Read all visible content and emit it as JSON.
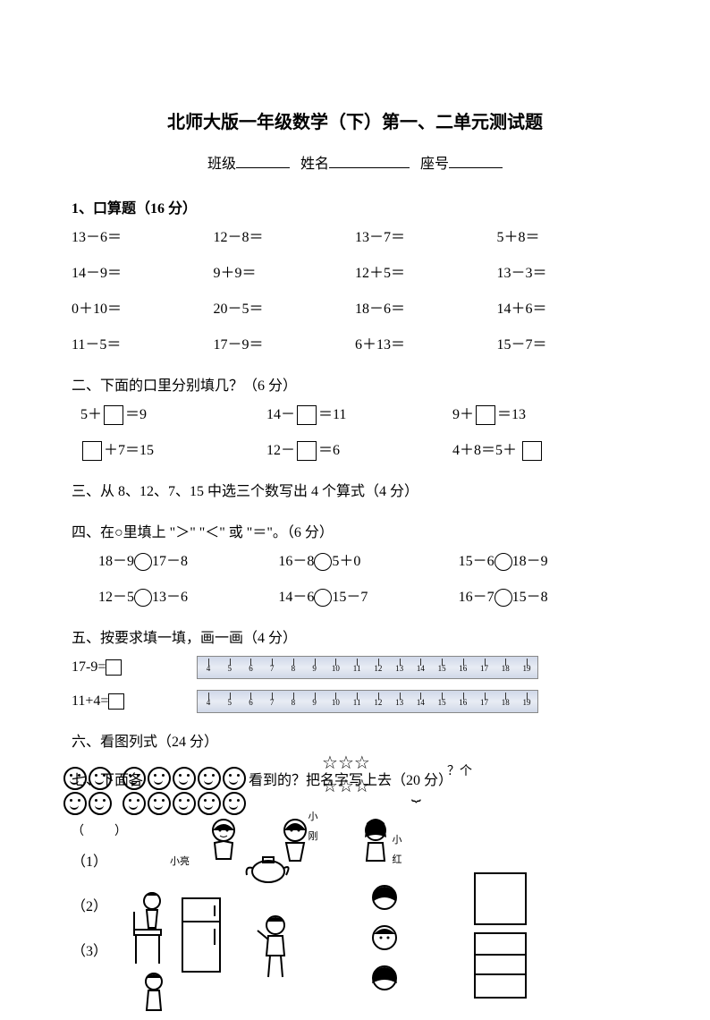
{
  "title": "北师大版一年级数学（下）第一、二单元测试题",
  "header": {
    "class_label": "班级",
    "name_label": "姓名",
    "seat_label": "座号"
  },
  "q1": {
    "heading": "1、口算题（16 分）",
    "rows": [
      [
        "13－6＝",
        "12－8＝",
        "13－7＝",
        "5＋8＝"
      ],
      [
        "14－9＝",
        "9＋9＝",
        "12＋5＝",
        "13－3＝"
      ],
      [
        "0＋10＝",
        "20－5＝",
        "18－6＝",
        "14＋6＝"
      ],
      [
        "11－5＝",
        "17－9＝",
        "6＋13＝",
        "15－7＝"
      ]
    ]
  },
  "q2": {
    "heading": "二、下面的口里分别填几？（6 分）",
    "row1": {
      "a_pre": "5＋",
      "a_post": "＝9",
      "b_pre": "14－",
      "b_post": "＝11",
      "c_pre": "9＋",
      "c_post": "＝13"
    },
    "row2": {
      "a_post": "＋7＝15",
      "b_pre": "12－",
      "b_post": "＝6",
      "c_text": "4＋8＝5＋"
    }
  },
  "q3": {
    "heading": "三、从 8、12、7、15 中选三个数写出 4 个算式（4 分）"
  },
  "q4": {
    "heading": "四、在○里填上 \"＞\" \"＜\" 或 \"＝\"。（6 分）",
    "row1": {
      "a_l": "18－9",
      "a_r": "17－8",
      "b_l": "16－8",
      "b_r": "5＋0",
      "c_l": "15－6",
      "c_r": "18－9"
    },
    "row2": {
      "a_l": "12－5",
      "a_r": "13－6",
      "b_l": "14－6",
      "b_r": "15－7",
      "c_l": "16－7",
      "c_r": "15－8"
    }
  },
  "q5": {
    "heading": "五、按要求填一填，画一画（4 分）",
    "eq1": "17-9=",
    "eq2": "11+4=",
    "ruler_ticks": [
      "4",
      "5",
      "6",
      "7",
      "8",
      "9",
      "10",
      "11",
      "12",
      "13",
      "14",
      "15",
      "16",
      "17",
      "18",
      "19"
    ]
  },
  "q6": {
    "heading": "六、看图列式（24 分）"
  },
  "q7": {
    "text_a": "七、下面各",
    "text_b": "看到的？把名字写上去（20 分）",
    "q_mark": "？个",
    "item1": "（1）",
    "item2": "（2）",
    "item3": "（3）",
    "names": {
      "liang": "小亮",
      "gang": "小刚",
      "hong": "小红"
    }
  }
}
